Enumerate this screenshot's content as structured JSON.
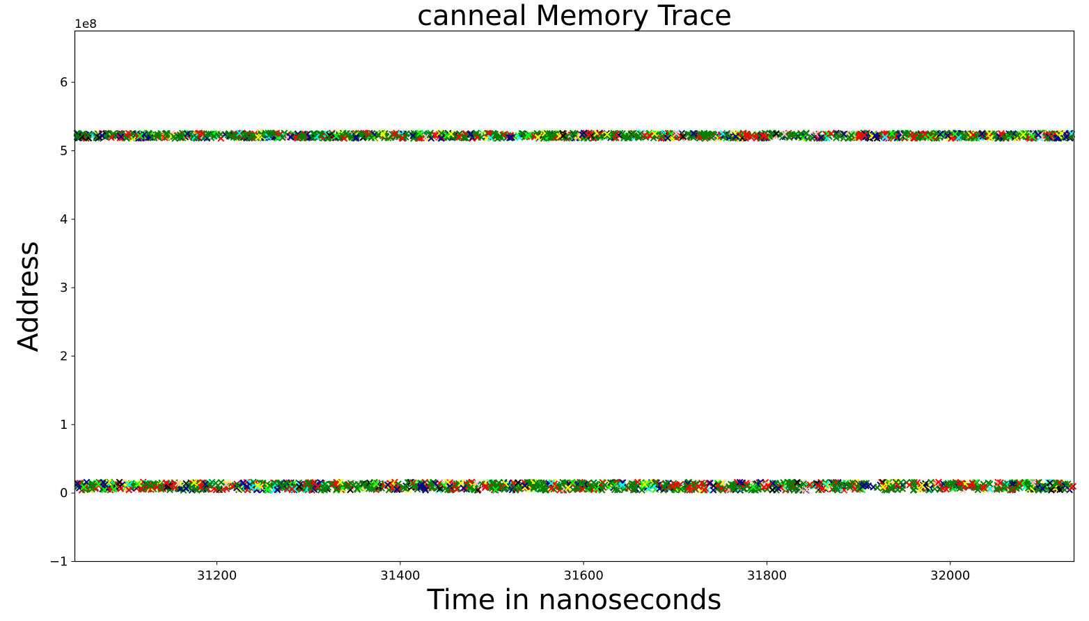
{
  "chart_data": {
    "type": "scatter",
    "title": "canneal Memory Trace",
    "xlabel": "Time in nanoseconds",
    "ylabel": "Address",
    "y_offset_label": "1e8",
    "xlim": [
      31045,
      32135
    ],
    "ylim": [
      -1.0,
      6.75
    ],
    "x_ticks": [
      31200,
      31400,
      31600,
      31800,
      32000
    ],
    "x_tick_labels": [
      "31200",
      "31400",
      "31600",
      "31800",
      "32000"
    ],
    "y_ticks": [
      -1,
      0,
      1,
      2,
      3,
      4,
      5,
      6
    ],
    "y_tick_labels": [
      "−1",
      "0",
      "1",
      "2",
      "3",
      "4",
      "5",
      "6"
    ],
    "marker": "x",
    "grid": false,
    "legend": "none",
    "series_colors": [
      "#008000",
      "#ff0000",
      "#00008b",
      "#ffff00",
      "#00ff00",
      "#00ffff",
      "#ffc0cb",
      "#000000"
    ],
    "bands": [
      {
        "name": "high",
        "y_center": 5.22,
        "y_spread": 0.04,
        "x_range": [
          31045,
          32135
        ]
      },
      {
        "name": "low",
        "y_center": 0.1,
        "y_spread": 0.06,
        "x_range": [
          31045,
          32135
        ]
      }
    ]
  }
}
